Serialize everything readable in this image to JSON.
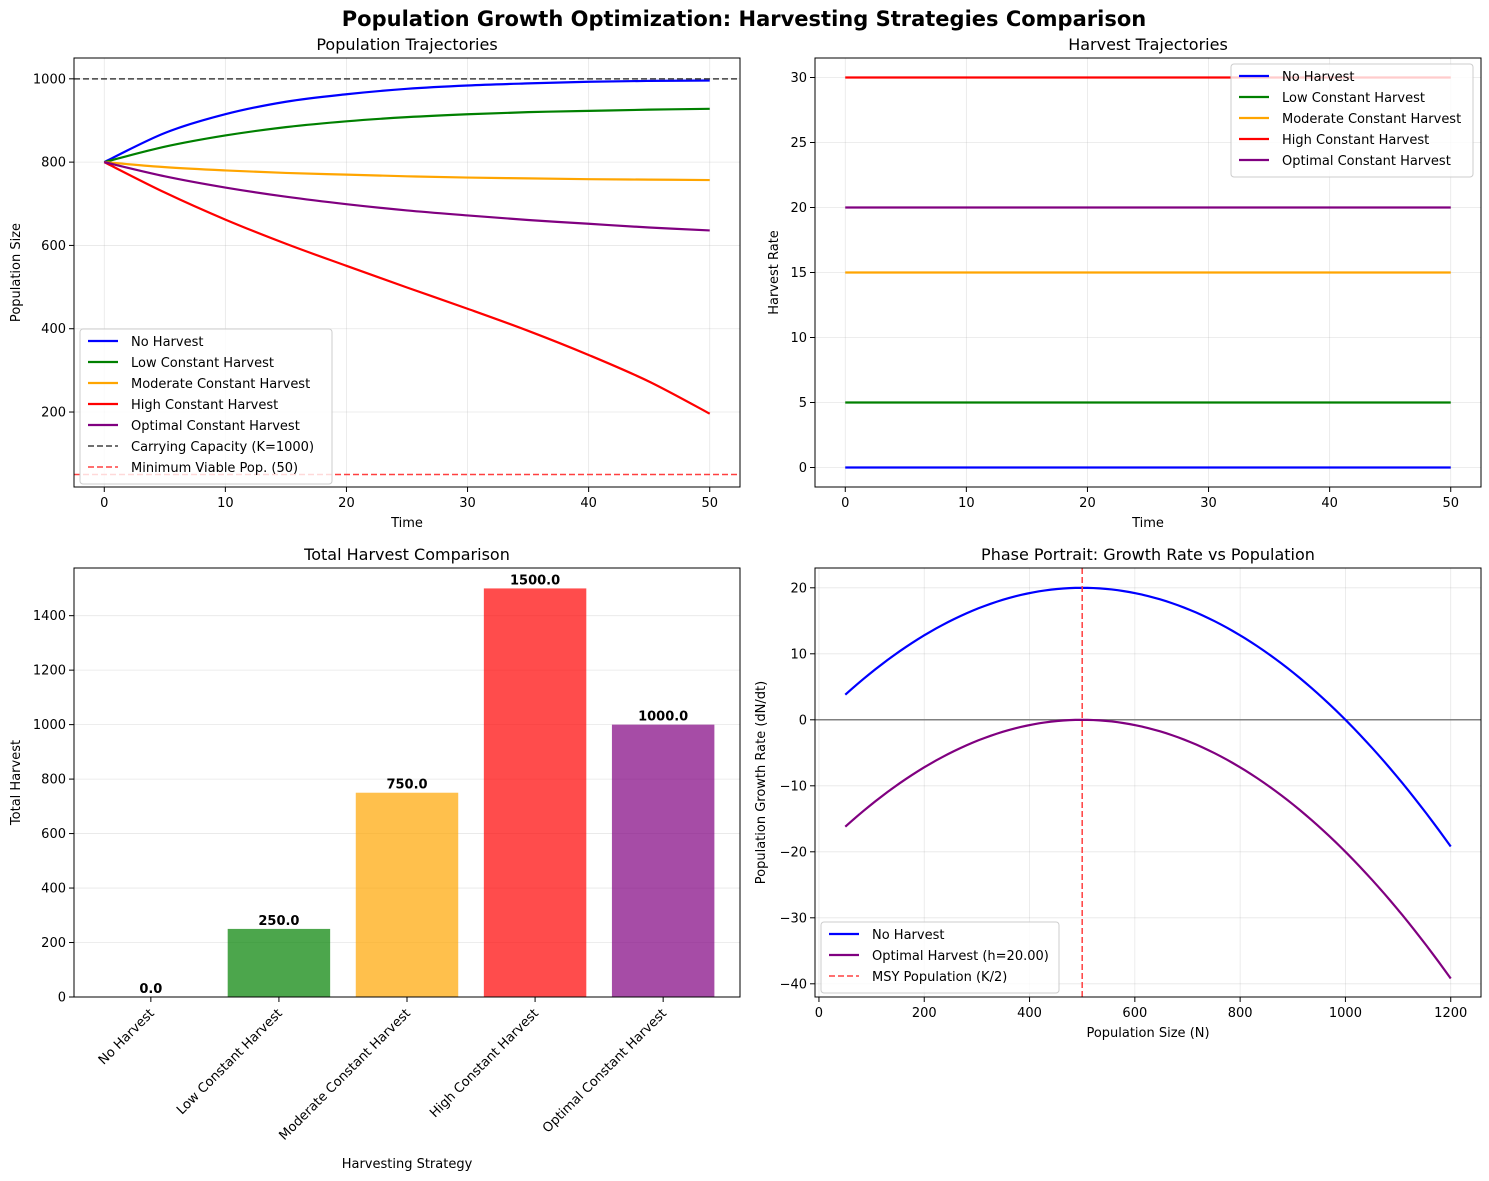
{
  "figure": {
    "suptitle": "Population Growth Optimization: Harvesting Strategies Comparison"
  },
  "colors": {
    "No Harvest": "#0000ff",
    "Low Constant Harvest": "#008000",
    "Moderate Constant Harvest": "#ffa500",
    "High Constant Harvest": "#ff0000",
    "Optimal Constant Harvest": "#800080"
  },
  "chart_data": [
    {
      "id": "population",
      "type": "line",
      "title": "Population Trajectories",
      "xlabel": "Time",
      "ylabel": "Population Size",
      "xlim": [
        -2.5,
        52.5
      ],
      "ylim": [
        20,
        1050
      ],
      "xticks": [
        0,
        10,
        20,
        30,
        40,
        50
      ],
      "yticks": [
        200,
        400,
        600,
        800,
        1000
      ],
      "grid": true,
      "legend_position": "lower-left",
      "x": [
        0,
        5,
        10,
        15,
        20,
        25,
        30,
        35,
        40,
        45,
        50
      ],
      "series": [
        {
          "name": "No Harvest",
          "color": "#0000ff",
          "values": [
            800,
            870,
            915,
            945,
            963,
            976,
            984,
            989,
            993,
            995,
            996
          ]
        },
        {
          "name": "Low Constant Harvest",
          "color": "#008000",
          "values": [
            800,
            837,
            864,
            884,
            898,
            908,
            915,
            920,
            923,
            926,
            928
          ]
        },
        {
          "name": "Moderate Constant Harvest",
          "color": "#ffa500",
          "values": [
            800,
            788,
            780,
            774,
            770,
            766,
            763,
            761,
            759,
            758,
            757
          ]
        },
        {
          "name": "High Constant Harvest",
          "color": "#ff0000",
          "values": [
            800,
            727,
            662,
            604,
            551,
            499,
            448,
            395,
            337,
            273,
            196
          ]
        },
        {
          "name": "Optimal Constant Harvest",
          "color": "#800080",
          "values": [
            800,
            766,
            739,
            717,
            699,
            684,
            672,
            661,
            652,
            643,
            636
          ]
        }
      ],
      "reference_lines": [
        {
          "name": "Carrying Capacity (K=1000)",
          "y": 1000,
          "color": "#404040"
        },
        {
          "name": "Minimum Viable Pop. (50)",
          "y": 50,
          "color": "#ff4040"
        }
      ]
    },
    {
      "id": "harvest",
      "type": "line",
      "title": "Harvest Trajectories",
      "xlabel": "Time",
      "ylabel": "Harvest Rate",
      "xlim": [
        -2.5,
        52.5
      ],
      "ylim": [
        -1.5,
        31.5
      ],
      "xticks": [
        0,
        10,
        20,
        30,
        40,
        50
      ],
      "yticks": [
        0,
        5,
        10,
        15,
        20,
        25,
        30
      ],
      "grid": true,
      "legend_position": "upper-right",
      "x": [
        0,
        50
      ],
      "series": [
        {
          "name": "No Harvest",
          "color": "#0000ff",
          "values": [
            0,
            0
          ]
        },
        {
          "name": "Low Constant Harvest",
          "color": "#008000",
          "values": [
            5,
            5
          ]
        },
        {
          "name": "Moderate Constant Harvest",
          "color": "#ffa500",
          "values": [
            15,
            15
          ]
        },
        {
          "name": "High Constant Harvest",
          "color": "#ff0000",
          "values": [
            30,
            30
          ]
        },
        {
          "name": "Optimal Constant Harvest",
          "color": "#800080",
          "values": [
            20,
            20
          ]
        }
      ]
    },
    {
      "id": "total",
      "type": "bar",
      "title": "Total Harvest Comparison",
      "xlabel": "Harvesting Strategy",
      "ylabel": "Total Harvest",
      "ylim": [
        0,
        1575
      ],
      "yticks": [
        0,
        200,
        400,
        600,
        800,
        1000,
        1200,
        1400
      ],
      "grid": true,
      "categories": [
        "No Harvest",
        "Low Constant Harvest",
        "Moderate Constant Harvest",
        "High Constant Harvest",
        "Optimal Constant Harvest"
      ],
      "values": [
        0,
        250,
        750,
        1500,
        1000
      ],
      "value_labels": [
        "0.0",
        "250.0",
        "750.0",
        "1500.0",
        "1000.0"
      ],
      "colors": [
        "#0000ff",
        "#008000",
        "#ffa500",
        "#ff0000",
        "#800080"
      ]
    },
    {
      "id": "phase",
      "type": "line",
      "title": "Phase Portrait: Growth Rate vs Population",
      "xlabel": "Population Size (N)",
      "ylabel": "Population Growth Rate (dN/dt)",
      "xlim": [
        -7.5,
        1257.5
      ],
      "ylim": [
        -42,
        23
      ],
      "xticks": [
        0,
        200,
        400,
        600,
        800,
        1000,
        1200
      ],
      "yticks": [
        -40,
        -30,
        -20,
        -10,
        0,
        10,
        20
      ],
      "grid": true,
      "legend_position": "lower-left",
      "series": [
        {
          "name": "No Harvest",
          "color": "#0000ff",
          "curve": "logistic",
          "r": 0.08,
          "K": 1000,
          "h": 0,
          "x_range": [
            50,
            1200
          ]
        },
        {
          "name": "Optimal Harvest (h=20.00)",
          "color": "#800080",
          "curve": "logistic",
          "r": 0.08,
          "K": 1000,
          "h": 20,
          "x_range": [
            50,
            1200
          ]
        }
      ],
      "reference_lines": [
        {
          "name": "MSY Population (K/2)",
          "x": 500,
          "color": "#ff4040"
        },
        {
          "name": "",
          "y": 0,
          "color": "#808080"
        }
      ]
    }
  ]
}
